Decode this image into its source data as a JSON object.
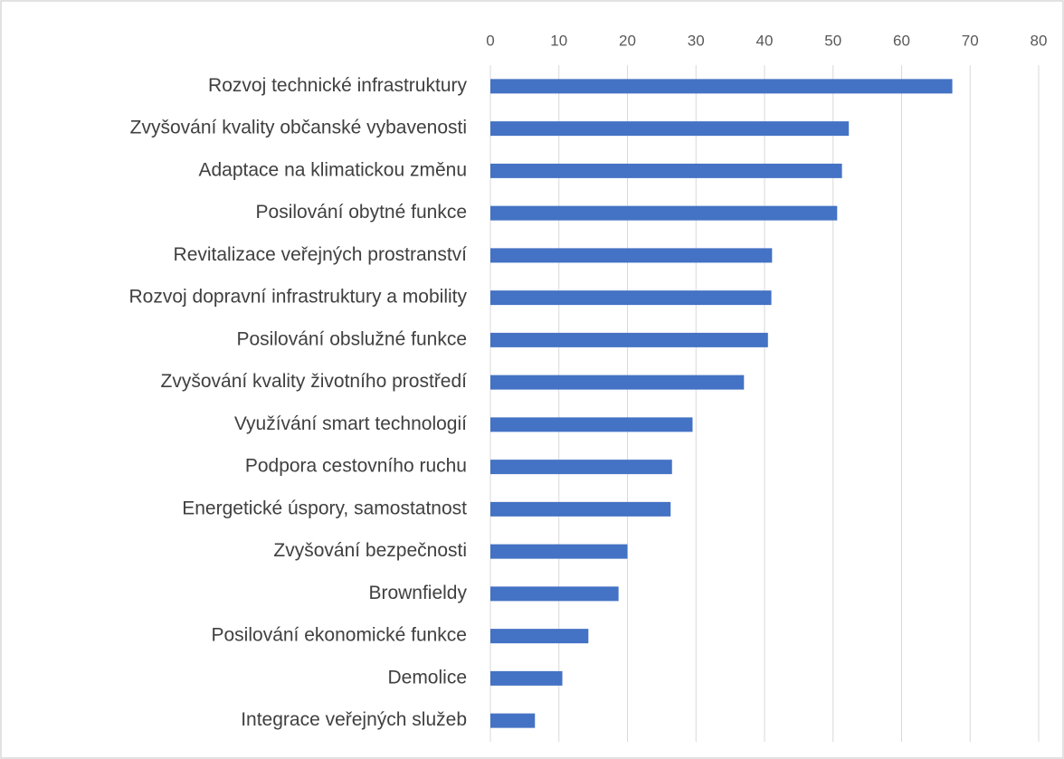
{
  "chart_data": {
    "type": "bar",
    "orientation": "horizontal",
    "categories": [
      "Rozvoj technické infrastruktury",
      "Zvyšování kvality občanské vybavenosti",
      "Adaptace na klimatickou změnu",
      "Posilování obytné funkce",
      "Revitalizace veřejných prostranství",
      "Rozvoj dopravní infrastruktury a mobility",
      "Posilování obslužné funkce",
      "Zvyšování kvality životního prostředí",
      "Využívání smart technologií",
      "Podpora cestovního ruchu",
      "Energetické úspory, samostatnost",
      "Zvyšování bezpečnosti",
      "Brownfieldy",
      "Posilování ekonomické funkce",
      "Demolice",
      "Integrace veřejných služeb"
    ],
    "values": [
      67.4,
      52.3,
      51.3,
      50.6,
      41.1,
      41,
      40.5,
      37,
      29.5,
      26.5,
      26.3,
      20,
      18.7,
      14.3,
      10.5,
      6.5
    ],
    "color": "#4472c4",
    "xlim": [
      0,
      80
    ],
    "xticks": [
      0,
      10,
      20,
      30,
      40,
      50,
      60,
      70,
      80
    ],
    "grid": true
  }
}
